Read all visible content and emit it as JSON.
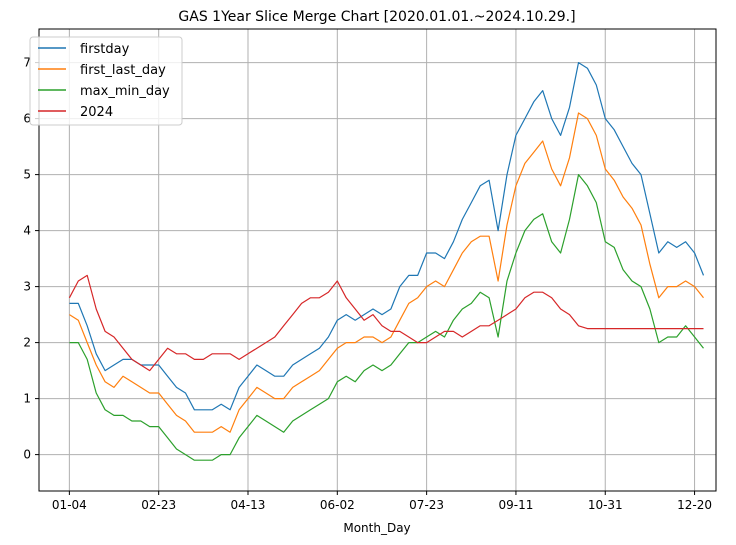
{
  "chart_data": {
    "type": "line",
    "title": "GAS 1Year Slice Merge Chart [2020.01.01.~2024.10.29.]",
    "xlabel": "Month_Day",
    "ylabel": "",
    "x_tick_labels": [
      "01-04",
      "02-23",
      "04-13",
      "06-02",
      "07-23",
      "09-11",
      "10-31",
      "12-20"
    ],
    "x_tick_positions": [
      0,
      50,
      100,
      150,
      200,
      250,
      300,
      350
    ],
    "xlim": [
      -17,
      362
    ],
    "ylim": [
      -0.65,
      7.6
    ],
    "y_ticks": [
      0,
      1,
      2,
      3,
      4,
      5,
      6,
      7
    ],
    "grid": true,
    "legend_position": "top-left",
    "x": [
      0,
      5,
      10,
      15,
      20,
      25,
      30,
      35,
      40,
      45,
      50,
      55,
      60,
      65,
      70,
      75,
      80,
      85,
      90,
      95,
      100,
      105,
      110,
      115,
      120,
      125,
      130,
      135,
      140,
      145,
      150,
      155,
      160,
      165,
      170,
      175,
      180,
      185,
      190,
      195,
      200,
      205,
      210,
      215,
      220,
      225,
      230,
      235,
      240,
      245,
      250,
      255,
      260,
      265,
      270,
      275,
      280,
      285,
      290,
      295,
      300,
      305,
      310,
      315,
      320,
      325,
      330,
      335,
      340,
      345,
      350,
      355
    ],
    "series": [
      {
        "name": "firstday",
        "color": "#1f77b4",
        "values": [
          2.7,
          2.7,
          2.3,
          1.8,
          1.5,
          1.6,
          1.7,
          1.7,
          1.6,
          1.6,
          1.6,
          1.4,
          1.2,
          1.1,
          0.8,
          0.8,
          0.8,
          0.9,
          0.8,
          1.2,
          1.4,
          1.6,
          1.5,
          1.4,
          1.4,
          1.6,
          1.7,
          1.8,
          1.9,
          2.1,
          2.4,
          2.5,
          2.4,
          2.5,
          2.6,
          2.5,
          2.6,
          3.0,
          3.2,
          3.2,
          3.6,
          3.6,
          3.5,
          3.8,
          4.2,
          4.5,
          4.8,
          4.9,
          4.0,
          5.0,
          5.7,
          6.0,
          6.3,
          6.5,
          6.0,
          5.7,
          6.2,
          7.0,
          6.9,
          6.6,
          6.0,
          5.8,
          5.5,
          5.2,
          5.0,
          4.3,
          3.6,
          3.8,
          3.7,
          3.8,
          3.6,
          3.2
        ]
      },
      {
        "name": "first_last_day",
        "color": "#ff7f0e",
        "values": [
          2.5,
          2.4,
          2.0,
          1.6,
          1.3,
          1.2,
          1.4,
          1.3,
          1.2,
          1.1,
          1.1,
          0.9,
          0.7,
          0.6,
          0.4,
          0.4,
          0.4,
          0.5,
          0.4,
          0.8,
          1.0,
          1.2,
          1.1,
          1.0,
          1.0,
          1.2,
          1.3,
          1.4,
          1.5,
          1.7,
          1.9,
          2.0,
          2.0,
          2.1,
          2.1,
          2.0,
          2.1,
          2.4,
          2.7,
          2.8,
          3.0,
          3.1,
          3.0,
          3.3,
          3.6,
          3.8,
          3.9,
          3.9,
          3.1,
          4.1,
          4.8,
          5.2,
          5.4,
          5.6,
          5.1,
          4.8,
          5.3,
          6.1,
          6.0,
          5.7,
          5.1,
          4.9,
          4.6,
          4.4,
          4.1,
          3.4,
          2.8,
          3.0,
          3.0,
          3.1,
          3.0,
          2.8
        ]
      },
      {
        "name": "max_min_day",
        "color": "#2ca02c",
        "values": [
          2.0,
          2.0,
          1.7,
          1.1,
          0.8,
          0.7,
          0.7,
          0.6,
          0.6,
          0.5,
          0.5,
          0.3,
          0.1,
          0.0,
          -0.1,
          -0.1,
          -0.1,
          0.0,
          0.0,
          0.3,
          0.5,
          0.7,
          0.6,
          0.5,
          0.4,
          0.6,
          0.7,
          0.8,
          0.9,
          1.0,
          1.3,
          1.4,
          1.3,
          1.5,
          1.6,
          1.5,
          1.6,
          1.8,
          2.0,
          2.0,
          2.1,
          2.2,
          2.1,
          2.4,
          2.6,
          2.7,
          2.9,
          2.8,
          2.1,
          3.1,
          3.6,
          4.0,
          4.2,
          4.3,
          3.8,
          3.6,
          4.2,
          5.0,
          4.8,
          4.5,
          3.8,
          3.7,
          3.3,
          3.1,
          3.0,
          2.6,
          2.0,
          2.1,
          2.1,
          2.3,
          2.1,
          1.9
        ]
      },
      {
        "name": "2024",
        "color": "#d62728",
        "values": [
          2.8,
          3.1,
          3.2,
          2.6,
          2.2,
          2.1,
          1.9,
          1.7,
          1.6,
          1.5,
          1.7,
          1.9,
          1.8,
          1.8,
          1.7,
          1.7,
          1.8,
          1.8,
          1.8,
          1.7,
          1.8,
          1.9,
          2.0,
          2.1,
          2.3,
          2.5,
          2.7,
          2.8,
          2.8,
          2.9,
          3.1,
          2.8,
          2.6,
          2.4,
          2.5,
          2.3,
          2.2,
          2.2,
          2.1,
          2.0,
          2.0,
          2.1,
          2.2,
          2.2,
          2.1,
          2.2,
          2.3,
          2.3,
          2.4,
          2.5,
          2.6,
          2.8,
          2.9,
          2.9,
          2.8,
          2.6,
          2.5,
          2.3,
          2.25,
          2.25,
          2.25,
          2.25,
          2.25,
          2.25,
          2.25,
          2.25,
          2.25,
          2.25,
          2.25,
          2.25,
          2.25,
          2.25
        ]
      }
    ]
  }
}
